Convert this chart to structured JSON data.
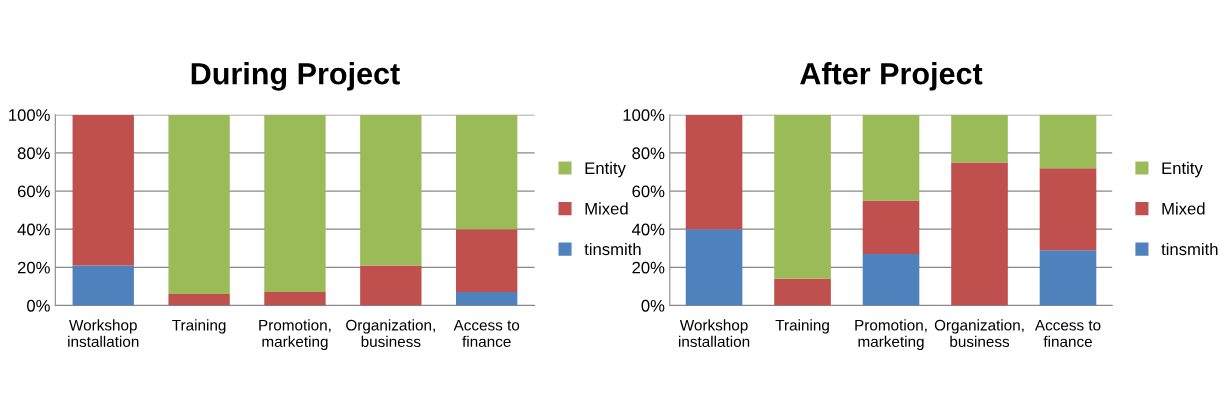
{
  "chart_data": [
    {
      "type": "bar",
      "title": "During Project",
      "stacked": true,
      "categories": [
        "Workshop\ninstallation",
        "Training",
        "Promotion,\nmarketing",
        "Organization,\nbusiness",
        "Access to\nfinance"
      ],
      "series": [
        {
          "name": "tinsmith",
          "color": "#4f81bd",
          "values": [
            21,
            0,
            0,
            0,
            7
          ]
        },
        {
          "name": "Mixed",
          "color": "#c0504d",
          "values": [
            79,
            6,
            7,
            21,
            33
          ]
        },
        {
          "name": "Entity",
          "color": "#9bbb59",
          "values": [
            0,
            94,
            93,
            79,
            60
          ]
        }
      ],
      "ylim": [
        0,
        100
      ],
      "yticks": [
        {
          "value": 0,
          "label": "0%"
        },
        {
          "value": 20,
          "label": "20%"
        },
        {
          "value": 40,
          "label": "40%"
        },
        {
          "value": 60,
          "label": "60%"
        },
        {
          "value": 80,
          "label": "80%"
        },
        {
          "value": 100,
          "label": "100%"
        }
      ],
      "grid": "y",
      "legend": "right"
    },
    {
      "type": "bar",
      "title": "After Project",
      "stacked": true,
      "categories": [
        "Workshop\ninstallation",
        "Training",
        "Promotion,\nmarketing",
        "Organization,\nbusiness",
        "Access to\nfinance"
      ],
      "series": [
        {
          "name": "tinsmith",
          "color": "#4f81bd",
          "values": [
            40,
            0,
            27,
            0,
            29
          ]
        },
        {
          "name": "Mixed",
          "color": "#c0504d",
          "values": [
            60,
            14,
            28,
            75,
            43
          ]
        },
        {
          "name": "Entity",
          "color": "#9bbb59",
          "values": [
            0,
            86,
            45,
            25,
            28
          ]
        }
      ],
      "ylim": [
        0,
        100
      ],
      "yticks": [
        {
          "value": 0,
          "label": "0%"
        },
        {
          "value": 20,
          "label": "20%"
        },
        {
          "value": 40,
          "label": "40%"
        },
        {
          "value": 60,
          "label": "60%"
        },
        {
          "value": 80,
          "label": "80%"
        },
        {
          "value": 100,
          "label": "100%"
        }
      ],
      "grid": "y",
      "legend": "right"
    }
  ]
}
